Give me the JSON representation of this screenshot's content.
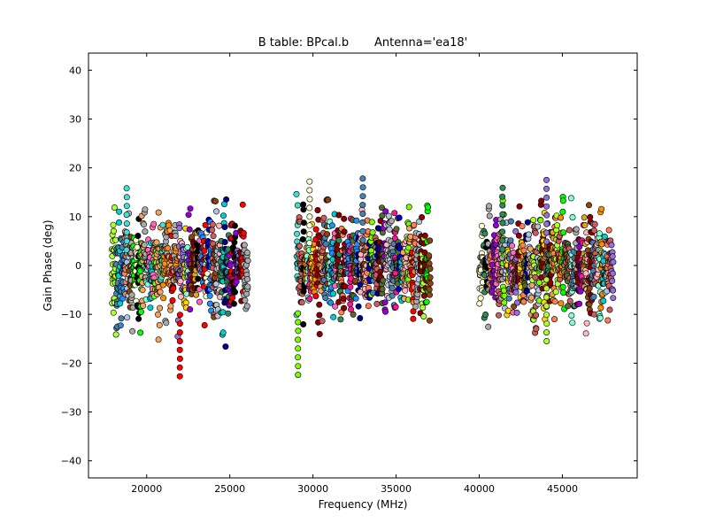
{
  "chart_data": {
    "type": "scatter",
    "title": "B table: BPcal.b       Antenna='ea18'",
    "xlabel": "Frequency (MHz)",
    "ylabel": "Gain Phase (deg)",
    "xlim": [
      16500,
      49500
    ],
    "ylim": [
      -43.5,
      43.5
    ],
    "xticks": [
      20000,
      25000,
      30000,
      35000,
      40000,
      45000
    ],
    "yticks": [
      -40,
      -30,
      -20,
      -10,
      0,
      10,
      20,
      30,
      40
    ],
    "grid": false,
    "legend": "none",
    "marker": "circle",
    "series_colors": [
      "#ff0000",
      "#00ff00",
      "#0000cd",
      "#ffd700",
      "#ff69b4",
      "#40e0d0",
      "#8b0000",
      "#7cfc00",
      "#1e90ff",
      "#ff8c00",
      "#9400d3",
      "#a9a9a9",
      "#2e8b57",
      "#f4a460",
      "#4682b4",
      "#ff1493",
      "#556b2f",
      "#b0c4de",
      "#daa520",
      "#fffacd",
      "#ff7f50",
      "#9370db",
      "#00ced1",
      "#000000",
      "#8b4513",
      "#7fffd4",
      "#ffb6c1",
      "#00008b",
      "#adff2f",
      "#cd5c5c"
    ],
    "bands": [
      {
        "range": [
          17900,
          26000
        ],
        "y_center": [
          -4,
          4
        ],
        "y_spread": [
          -17,
          15
        ]
      },
      {
        "range": [
          29000,
          37000
        ],
        "y_center": [
          -4,
          4
        ],
        "y_spread": [
          -22,
          17.5
        ]
      },
      {
        "range": [
          40000,
          48000
        ],
        "y_center": [
          -4,
          4
        ],
        "y_spread": [
          -15.5,
          17.5
        ]
      }
    ],
    "notable_points": [
      {
        "x": 22000,
        "y": -22.7
      },
      {
        "x": 29100,
        "y": -22.4
      },
      {
        "x": 33000,
        "y": 17.8
      },
      {
        "x": 44050,
        "y": 17.5
      },
      {
        "x": 44050,
        "y": -15.5
      },
      {
        "x": 18800,
        "y": 15.8
      },
      {
        "x": 41400,
        "y": 15.9
      },
      {
        "x": 29800,
        "y": 17.2
      }
    ]
  }
}
